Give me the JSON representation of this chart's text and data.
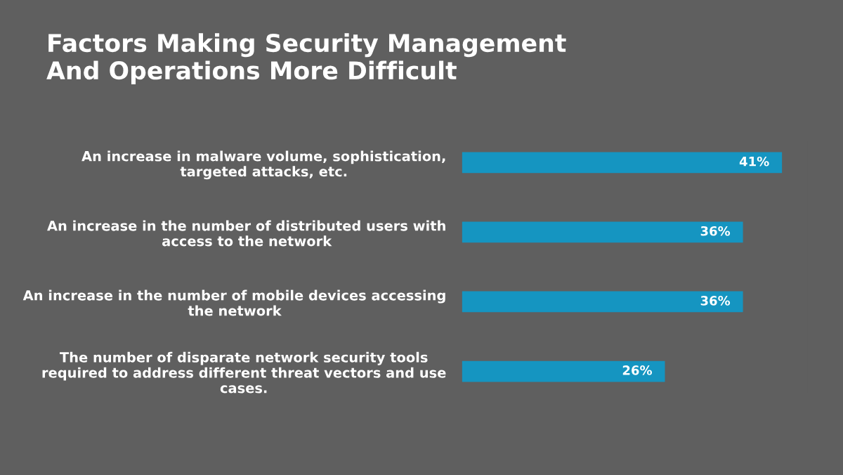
{
  "chart_data": {
    "type": "bar",
    "orientation": "horizontal",
    "title": "Factors Making Security Management\nAnd Operations More Difficult",
    "categories": [
      "An increase in malware volume, sophistication,\ntargeted attacks, etc.",
      "An increase in the number of distributed users with\naccess to the network",
      "An increase in the number of mobile devices accessing\nthe network",
      "The number of disparate network security tools\nrequired to address different threat vectors and use\ncases."
    ],
    "values": [
      41,
      36,
      36,
      26
    ],
    "value_labels": [
      "41%",
      "36%",
      "36%",
      "26%"
    ],
    "color": "#1595c1",
    "grid": false,
    "legend": false,
    "tick_labels": "y"
  }
}
